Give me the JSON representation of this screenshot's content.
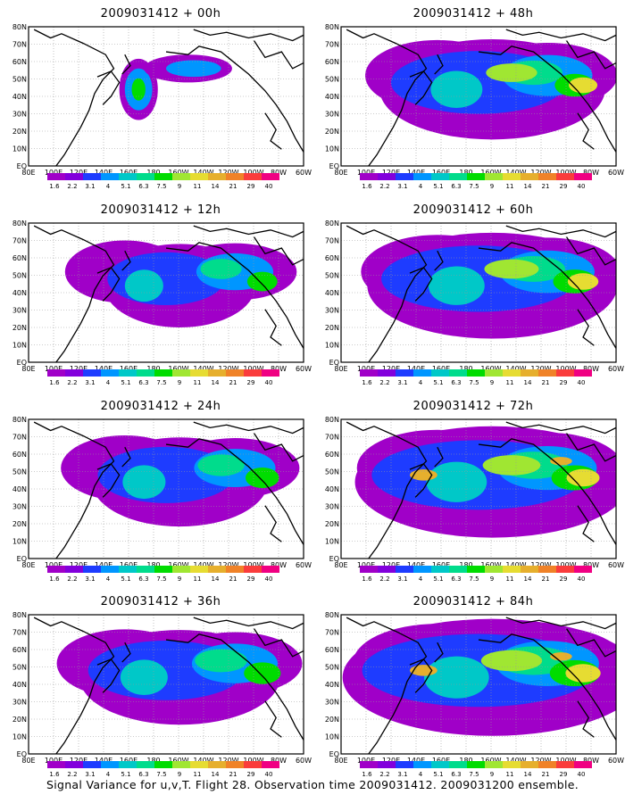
{
  "caption": "Signal Variance for u,v,T. Flight 28. Observation time 2009031412. 2009031200 ensemble.",
  "lat_labels": [
    "80N",
    "70N",
    "60N",
    "50N",
    "40N",
    "30N",
    "20N",
    "10N",
    "EQ"
  ],
  "lon_labels": [
    "80E",
    "100E",
    "120E",
    "140E",
    "160E",
    "180",
    "160W",
    "140W",
    "120W",
    "100W",
    "80W",
    "60W"
  ],
  "colorbar": {
    "levels": [
      "1.6",
      "2.2",
      "3.1",
      "4",
      "5.1",
      "6.3",
      "7.5",
      "9",
      "11",
      "14",
      "21",
      "29",
      "40"
    ],
    "colors": [
      "#a000c8",
      "#8200dc",
      "#1e3cff",
      "#0096ff",
      "#00c8c8",
      "#00dc8c",
      "#00dc00",
      "#a0e632",
      "#e6dc32",
      "#e6af2d",
      "#f08228",
      "#fa3c3c",
      "#f00082"
    ]
  },
  "panels": [
    {
      "title": "2009031412 + 00h",
      "lead_hours": 0,
      "intensity": 0.15
    },
    {
      "title": "2009031412 + 48h",
      "lead_hours": 48,
      "intensity": 0.55
    },
    {
      "title": "2009031412 + 12h",
      "lead_hours": 12,
      "intensity": 0.25
    },
    {
      "title": "2009031412 + 60h",
      "lead_hours": 60,
      "intensity": 0.65
    },
    {
      "title": "2009031412 + 24h",
      "lead_hours": 24,
      "intensity": 0.35
    },
    {
      "title": "2009031412 + 72h",
      "lead_hours": 72,
      "intensity": 0.75
    },
    {
      "title": "2009031412 + 36h",
      "lead_hours": 36,
      "intensity": 0.45
    },
    {
      "title": "2009031412 + 84h",
      "lead_hours": 84,
      "intensity": 0.85
    }
  ]
}
